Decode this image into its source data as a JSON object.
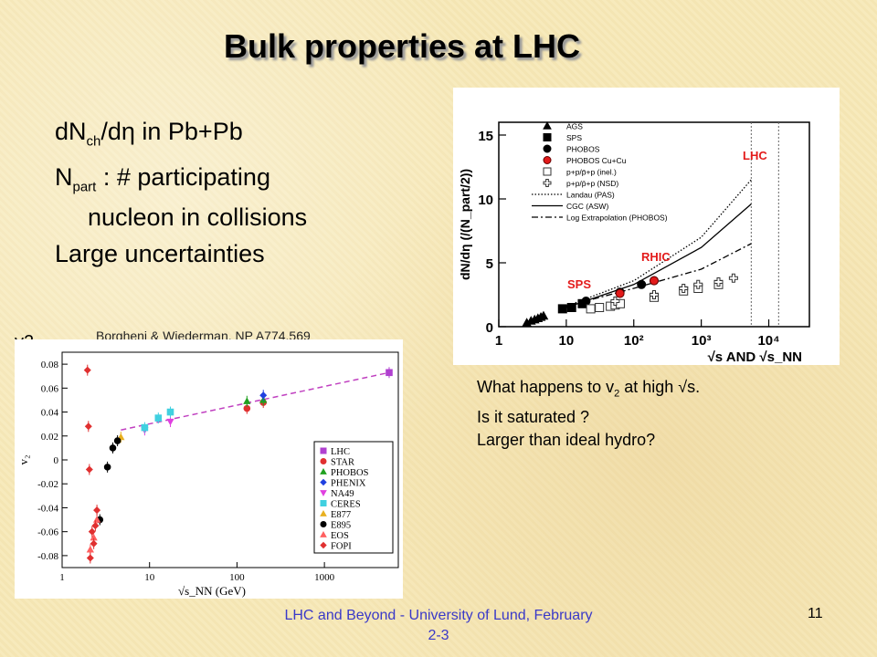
{
  "slide": {
    "title": "Bulk properties at LHC",
    "bullets": [
      {
        "main": "dN",
        "sub": "ch",
        "rest": "/dη in Pb+Pb"
      },
      {
        "main": "N",
        "sub": "part",
        "rest": " : # participating"
      },
      {
        "cont": "nucleon in collisions"
      },
      {
        "main": "Large uncertainties"
      }
    ],
    "v2_label": "v2",
    "credit": "Borgheni & Wiederman, NP A774,569",
    "question_lines": [
      {
        "pre": "What happens to v",
        "sub": "2",
        "post": " at high √s."
      },
      {
        "pre": "Is it saturated ?"
      },
      {
        "pre": "Larger than ideal hydro?"
      }
    ],
    "footer": "LHC and Beyond - University of Lund, February 2-3",
    "page_number": "11"
  },
  "chart_data": [
    {
      "type": "scatter",
      "ylabel": "dN/dη (/(N_part/2))",
      "xlabel": "√s AND √s_NN",
      "xscale": "log",
      "xlim": [
        1,
        40000
      ],
      "ylim": [
        0,
        16
      ],
      "xticks": [
        "1",
        "10",
        "10²",
        "10³",
        "10⁴"
      ],
      "yticks": [
        "0",
        "5",
        "10",
        "15"
      ],
      "legend": [
        "AGS",
        "SPS",
        "PHOBOS",
        "PHOBOS Cu+Cu",
        "p+p/p̄+p (inel.)",
        "p+p/p̄+p (NSD)",
        "Landau (PAS)",
        "CGC (ASW)",
        "Log Extrapolation (PHOBOS)"
      ],
      "legend_colors": {
        "PHOBOS Cu+Cu": "#e21a1a"
      },
      "annotations": [
        {
          "text": "LHC",
          "color": "#e31b1b"
        },
        {
          "text": "RHIC",
          "color": "#e31b1b"
        },
        {
          "text": "SPS",
          "color": "#e31b1b"
        }
      ],
      "series": [
        {
          "name": "AGS",
          "x": [
            2.6,
            3.0,
            3.4,
            3.8,
            4.2,
            4.6
          ],
          "y": [
            0.3,
            0.45,
            0.55,
            0.65,
            0.75,
            0.85
          ]
        },
        {
          "name": "SPS",
          "x": [
            8.8,
            12.0,
            17.3
          ],
          "y": [
            1.4,
            1.5,
            1.8
          ]
        },
        {
          "name": "PHOBOS",
          "x": [
            19.6,
            62.4,
            130,
            200
          ],
          "y": [
            2.0,
            2.7,
            3.3,
            3.6
          ]
        },
        {
          "name": "PHOBOS Cu+Cu",
          "x": [
            62.4,
            200
          ],
          "y": [
            2.6,
            3.6
          ]
        },
        {
          "name": "p+p/p̄+p (inel.)",
          "x": [
            23,
            31,
            45,
            53,
            63,
            200,
            546,
            900,
            1800
          ],
          "y": [
            1.4,
            1.5,
            1.6,
            1.7,
            1.8,
            2.3,
            2.8,
            3.0,
            3.3
          ]
        },
        {
          "name": "p+p/p̄+p (NSD)",
          "x": [
            53,
            200,
            546,
            900,
            1800,
            3000
          ],
          "y": [
            2.0,
            2.5,
            3.0,
            3.3,
            3.5,
            3.8
          ]
        }
      ],
      "curves": [
        {
          "name": "Landau (PAS)",
          "x": [
            10,
            100,
            1000,
            5500
          ],
          "y": [
            1.6,
            3.6,
            7.0,
            11.5
          ]
        },
        {
          "name": "CGC (ASW)",
          "x": [
            10,
            100,
            1000,
            5500
          ],
          "y": [
            1.5,
            3.3,
            6.2,
            9.6
          ]
        },
        {
          "name": "Log Extrapolation (PHOBOS)",
          "x": [
            10,
            100,
            1000,
            5500
          ],
          "y": [
            1.6,
            3.0,
            4.5,
            6.5
          ]
        }
      ],
      "vlines": [
        5500,
        14000
      ]
    },
    {
      "type": "scatter",
      "ylabel": "v₂",
      "xlabel": "√s_NN (GeV)",
      "xscale": "log",
      "xlim": [
        1,
        7000
      ],
      "ylim": [
        -0.09,
        0.09
      ],
      "xticks": [
        "1",
        "10",
        "100",
        "1000"
      ],
      "yticks": [
        "-0.08",
        "-0.06",
        "-0.04",
        "-0.02",
        "0",
        "0.02",
        "0.04",
        "0.06",
        "0.08"
      ],
      "legend": [
        "LHC",
        "STAR",
        "PHOBOS",
        "PHENIX",
        "NA49",
        "CERES",
        "E877",
        "E895",
        "EOS",
        "FOPI"
      ],
      "series": [
        {
          "name": "LHC",
          "color": "#b040d0",
          "x": [
            5500
          ],
          "y": [
            0.073
          ]
        },
        {
          "name": "STAR",
          "color": "#e03030",
          "x": [
            130,
            200
          ],
          "y": [
            0.043,
            0.048
          ]
        },
        {
          "name": "PHOBOS",
          "color": "#20a020",
          "x": [
            130,
            200
          ],
          "y": [
            0.049,
            0.05
          ]
        },
        {
          "name": "PHENIX",
          "color": "#2040e0",
          "x": [
            200
          ],
          "y": [
            0.054
          ]
        },
        {
          "name": "NA49",
          "color": "#e040e0",
          "x": [
            8.8,
            17.3
          ],
          "y": [
            0.025,
            0.032
          ]
        },
        {
          "name": "CERES",
          "color": "#40d0e0",
          "x": [
            8.8,
            12.6,
            17.3
          ],
          "y": [
            0.027,
            0.035,
            0.04
          ]
        },
        {
          "name": "E877",
          "color": "#e8b020",
          "x": [
            4.7
          ],
          "y": [
            0.019
          ]
        },
        {
          "name": "E895",
          "color": "#000000",
          "x": [
            2.7,
            3.3,
            3.8,
            4.3
          ],
          "y": [
            -0.05,
            -0.006,
            0.01,
            0.016
          ]
        },
        {
          "name": "EOS",
          "color": "#ff6060",
          "x": [
            2.1,
            2.3,
            2.5
          ],
          "y": [
            -0.075,
            -0.065,
            -0.05
          ]
        },
        {
          "name": "FOPI",
          "color": "#e03030",
          "x": [
            1.95,
            2.0,
            2.05,
            2.1,
            2.2,
            2.3,
            2.4,
            2.5
          ],
          "y": [
            0.075,
            0.028,
            -0.008,
            -0.082,
            -0.06,
            -0.07,
            -0.055,
            -0.042
          ]
        }
      ],
      "trend": {
        "x": [
          4.7,
          5500
        ],
        "y": [
          0.025,
          0.073
        ],
        "color": "#c040c0"
      }
    }
  ]
}
